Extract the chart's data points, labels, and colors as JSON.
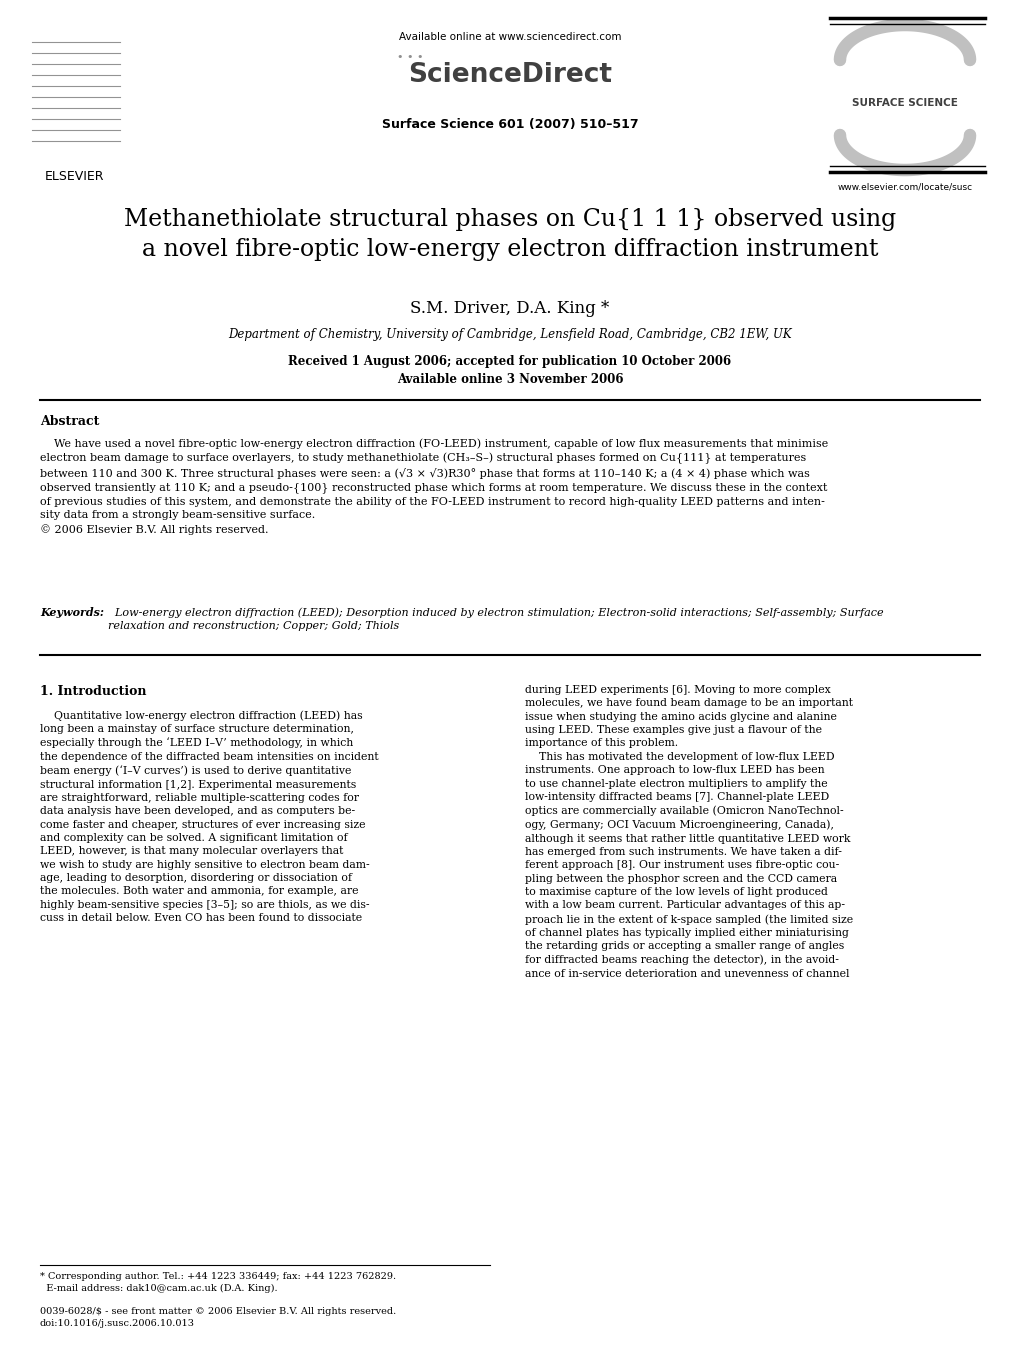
{
  "bg_color": "#ffffff",
  "page_width": 10.2,
  "page_height": 13.51,
  "header": {
    "available_online": "Available online at www.sciencedirect.com",
    "journal_info": "Surface Science 601 (2007) 510–517",
    "elsevier_text": "ELSEVIER",
    "surface_science_text": "SURFACE SCIENCE",
    "website": "www.elsevier.com/locate/susc"
  },
  "title": "Methanethiolate structural phases on Cu{1 1 1} observed using\na novel fibre-optic low-energy electron diffraction instrument",
  "authors": "S.M. Driver, D.A. King *",
  "affiliation": "Department of Chemistry, University of Cambridge, Lensfield Road, Cambridge, CB2 1EW, UK",
  "dates": "Received 1 August 2006; accepted for publication 10 October 2006\nAvailable online 3 November 2006",
  "abstract_title": "Abstract",
  "abstract_text": "    We have used a novel fibre-optic low-energy electron diffraction (FO-LEED) instrument, capable of low flux measurements that minimise\nelectron beam damage to surface overlayers, to study methanethiolate (CH₃–S–) structural phases formed on Cu{111} at temperatures\nbetween 110 and 300 K. Three structural phases were seen: a (√3 × √3)R30° phase that forms at 110–140 K; a (4 × 4) phase which was\nobserved transiently at 110 K; and a pseudo-{100} reconstructed phase which forms at room temperature. We discuss these in the context\nof previous studies of this system, and demonstrate the ability of the FO-LEED instrument to record high-quality LEED patterns and inten-\nsity data from a strongly beam-sensitive surface.\n© 2006 Elsevier B.V. All rights reserved.",
  "keywords_label": "Keywords:",
  "keywords_text": "  Low-energy electron diffraction (LEED); Desorption induced by electron stimulation; Electron-solid interactions; Self-assembly; Surface\nrelaxation and reconstruction; Copper; Gold; Thiols",
  "section1_title": "1. Introduction",
  "col1_text": "    Quantitative low-energy electron diffraction (LEED) has\nlong been a mainstay of surface structure determination,\nespecially through the ‘LEED I–V’ methodology, in which\nthe dependence of the diffracted beam intensities on incident\nbeam energy (‘I–V curves’) is used to derive quantitative\nstructural information [1,2]. Experimental measurements\nare straightforward, reliable multiple-scattering codes for\ndata analysis have been developed, and as computers be-\ncome faster and cheaper, structures of ever increasing size\nand complexity can be solved. A significant limitation of\nLEED, however, is that many molecular overlayers that\nwe wish to study are highly sensitive to electron beam dam-\nage, leading to desorption, disordering or dissociation of\nthe molecules. Both water and ammonia, for example, are\nhighly beam-sensitive species [3–5]; so are thiols, as we dis-\ncuss in detail below. Even CO has been found to dissociate",
  "col2_text": "during LEED experiments [6]. Moving to more complex\nmolecules, we have found beam damage to be an important\nissue when studying the amino acids glycine and alanine\nusing LEED. These examples give just a flavour of the\nimportance of this problem.\n    This has motivated the development of low-flux LEED\ninstruments. One approach to low-flux LEED has been\nto use channel-plate electron multipliers to amplify the\nlow-intensity diffracted beams [7]. Channel-plate LEED\noptics are commercially available (Omicron NanoTechnol-\nogy, Germany; OCI Vacuum Microengineering, Canada),\nalthough it seems that rather little quantitative LEED work\nhas emerged from such instruments. We have taken a dif-\nferent approach [8]. Our instrument uses fibre-optic cou-\npling between the phosphor screen and the CCD camera\nto maximise capture of the low levels of light produced\nwith a low beam current. Particular advantages of this ap-\nproach lie in the extent of k-space sampled (the limited size\nof channel plates has typically implied either miniaturising\nthe retarding grids or accepting a smaller range of angles\nfor diffracted beams reaching the detector), in the avoid-\nance of in-service deterioration and unevenness of channel",
  "footnote_star": "* Corresponding author. Tel.: +44 1223 336449; fax: +44 1223 762829.\n  E-mail address: dak10@cam.ac.uk (D.A. King).",
  "footnote_issn": "0039-6028/$ - see front matter © 2006 Elsevier B.V. All rights reserved.\ndoi:10.1016/j.susc.2006.10.013"
}
